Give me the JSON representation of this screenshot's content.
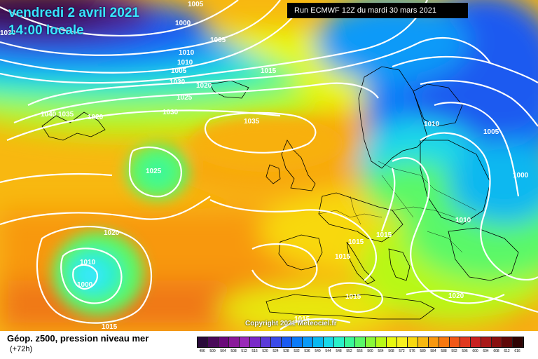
{
  "header": {
    "date": "vendredi 2 avril 2021",
    "time": "14:00 locale",
    "run": "Run ECMWF 12Z du mardi 30 mars 2021"
  },
  "copyright": "Copyright 2021 Meteociel.fr",
  "legend": {
    "title": "Géop. z500, pression niveau mer",
    "subtitle": "(+72h)",
    "scale_values": [
      "496",
      "500",
      "504",
      "508",
      "512",
      "516",
      "520",
      "524",
      "528",
      "532",
      "536",
      "540",
      "544",
      "548",
      "552",
      "556",
      "560",
      "564",
      "568",
      "572",
      "576",
      "580",
      "584",
      "588",
      "592",
      "596",
      "600",
      "604",
      "608",
      "612",
      "616"
    ],
    "scale_colors": [
      "#2a0a3a",
      "#4a0a5a",
      "#6a0a7a",
      "#8a1a9a",
      "#9a2ab8",
      "#7a2ac8",
      "#5a3ad8",
      "#3a4ae8",
      "#1a5af0",
      "#0a7af8",
      "#0a9af8",
      "#0ab8f0",
      "#1ad8e8",
      "#2af0c8",
      "#3af898",
      "#5af868",
      "#8af838",
      "#b8f818",
      "#e8f810",
      "#f8f020",
      "#f8d810",
      "#f8b810",
      "#f89810",
      "#f87810",
      "#f05818",
      "#e03820",
      "#c82020",
      "#a81818",
      "#881010",
      "#600808",
      "#300404"
    ]
  },
  "isobars": [
    {
      "label": "1005"
    },
    {
      "label": "1000"
    },
    {
      "label": "1010"
    },
    {
      "label": "1015"
    },
    {
      "label": "1020"
    },
    {
      "label": "1025"
    },
    {
      "label": "1030"
    },
    {
      "label": "1035"
    },
    {
      "label": "1040"
    },
    {
      "label": "1025"
    },
    {
      "label": "1020"
    },
    {
      "label": "1010"
    },
    {
      "label": "1000"
    },
    {
      "label": "1015"
    },
    {
      "label": "1010"
    },
    {
      "label": "1005"
    },
    {
      "label": "1000"
    },
    {
      "label": "1010"
    },
    {
      "label": "1015"
    },
    {
      "label": "1015"
    },
    {
      "label": "1015"
    },
    {
      "label": "1015"
    },
    {
      "label": "1020"
    },
    {
      "label": "1015"
    },
    {
      "label": "1035"
    },
    {
      "label": "1030"
    },
    {
      "label": "1020"
    },
    {
      "label": "1030"
    },
    {
      "label": "1005"
    },
    {
      "label": "1005"
    },
    {
      "label": "1010"
    }
  ]
}
